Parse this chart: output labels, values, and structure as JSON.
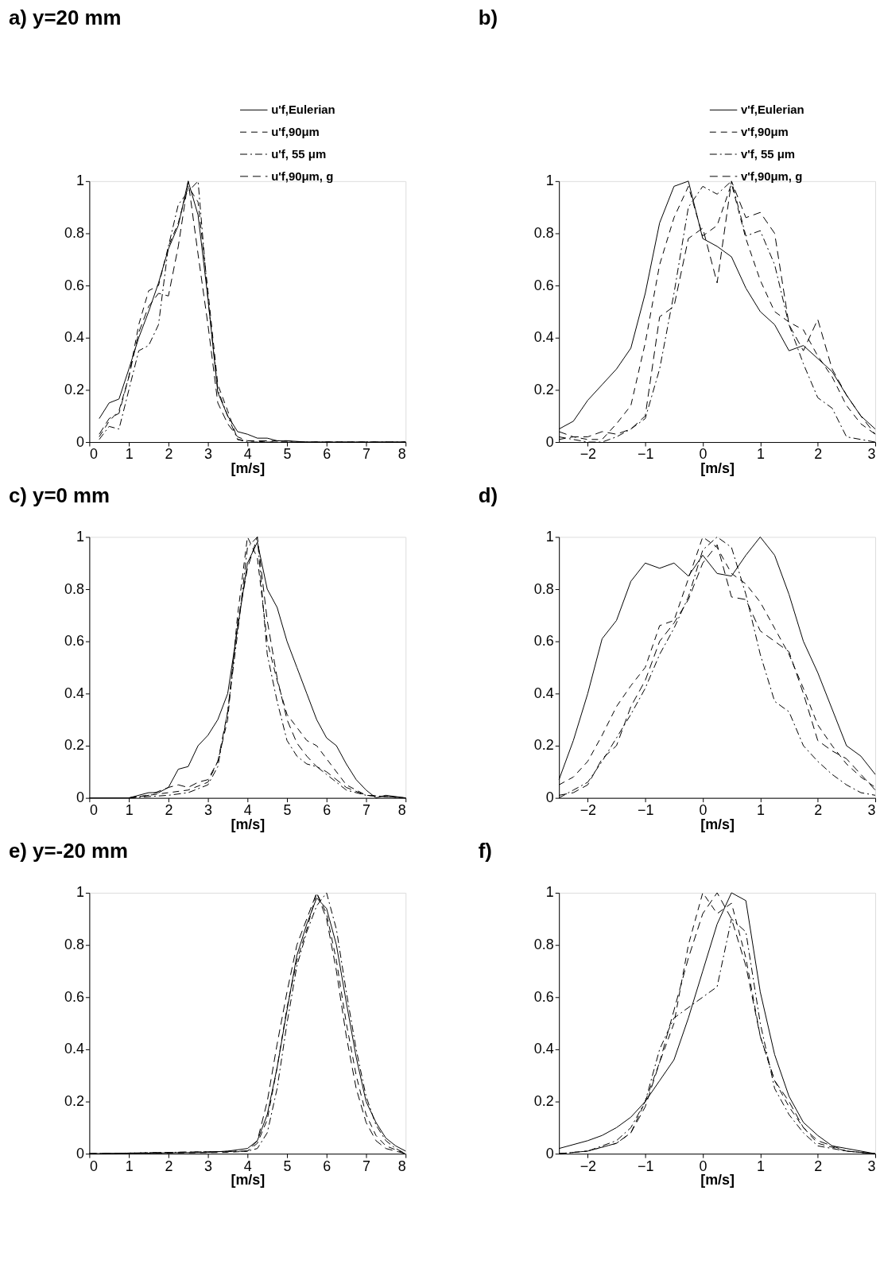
{
  "chart_data": [
    {
      "type": "line",
      "title": "a) y=20 mm",
      "xlabel": "[m/s]",
      "xlim": [
        0,
        8
      ],
      "xticks": [
        0,
        1,
        2,
        3,
        4,
        5,
        6,
        7,
        8
      ],
      "ylim": [
        0,
        1
      ],
      "yticks": [
        0,
        0.2,
        0.4,
        0.6,
        0.8,
        1
      ],
      "grid": false,
      "legend": "top right",
      "series": [
        {
          "name": "u'f,Eulerian",
          "color": "#000000",
          "line_style": "solid",
          "x": [
            0.25,
            0.5,
            0.75,
            1,
            1.25,
            1.5,
            1.75,
            2,
            2.25,
            2.5,
            2.75,
            3,
            3.25,
            3.5,
            3.75,
            4,
            4.25,
            4.5,
            4.75,
            5,
            5.5,
            6,
            7,
            8
          ],
          "values": [
            0.09,
            0.15,
            0.165,
            0.28,
            0.4,
            0.5,
            0.61,
            0.74,
            0.83,
            1.0,
            0.87,
            0.55,
            0.19,
            0.1,
            0.04,
            0.03,
            0.015,
            0.015,
            0.005,
            0.005,
            0,
            0,
            0,
            0
          ]
        },
        {
          "name": "u'f,90μm",
          "color": "#000000",
          "line_style": "dashed",
          "x": [
            0.25,
            0.5,
            0.75,
            1,
            1.25,
            1.5,
            1.75,
            2,
            2.25,
            2.5,
            2.75,
            3,
            3.25,
            3.5,
            3.75,
            4,
            4.5,
            5,
            8
          ],
          "values": [
            0.02,
            0.08,
            0.12,
            0.25,
            0.45,
            0.58,
            0.6,
            0.75,
            0.84,
            0.98,
            0.92,
            0.58,
            0.22,
            0.12,
            0.01,
            0.005,
            0,
            0,
            0
          ]
        },
        {
          "name": "u'f, 55 μm",
          "color": "#000000",
          "line_style": "dashdot",
          "x": [
            0.25,
            0.5,
            0.75,
            1,
            1.25,
            1.5,
            1.75,
            2,
            2.25,
            2.5,
            2.75,
            3,
            3.25,
            3.5,
            3.75,
            4,
            5,
            8
          ],
          "values": [
            0.01,
            0.06,
            0.05,
            0.2,
            0.35,
            0.37,
            0.45,
            0.75,
            0.91,
            0.96,
            1.0,
            0.55,
            0.2,
            0.1,
            0.01,
            0,
            0,
            0
          ]
        },
        {
          "name": "u'f,90μm, g",
          "color": "#000000",
          "line_style": "bold dashed",
          "x": [
            0.25,
            0.5,
            0.75,
            1,
            1.25,
            1.5,
            1.75,
            2,
            2.25,
            2.5,
            2.75,
            3,
            3.25,
            3.5,
            3.75,
            4,
            4.5,
            5,
            5.25,
            8
          ],
          "values": [
            0.03,
            0.09,
            0.11,
            0.25,
            0.42,
            0.52,
            0.57,
            0.56,
            0.75,
            1.0,
            0.72,
            0.45,
            0.15,
            0.07,
            0.02,
            0.005,
            0.005,
            0.005,
            0,
            0
          ]
        }
      ]
    },
    {
      "type": "line",
      "title": "b)",
      "xlabel": "[m/s]",
      "xlim": [
        -2.5,
        3
      ],
      "xticks": [
        -2,
        -1,
        0,
        1,
        2,
        3
      ],
      "ylim": [
        0,
        1
      ],
      "yticks": [
        0,
        0.2,
        0.4,
        0.6,
        0.8,
        1
      ],
      "grid": false,
      "legend": "top right",
      "series": [
        {
          "name": "v'f,Eulerian",
          "color": "#000000",
          "line_style": "solid",
          "x": [
            -2.5,
            -2.25,
            -2,
            -1.75,
            -1.5,
            -1.25,
            -1,
            -0.75,
            -0.5,
            -0.25,
            0,
            0.25,
            0.5,
            0.75,
            1,
            1.25,
            1.5,
            1.75,
            2,
            2.25,
            2.5,
            2.75,
            3
          ],
          "values": [
            0.05,
            0.08,
            0.16,
            0.22,
            0.28,
            0.36,
            0.57,
            0.84,
            0.98,
            1.0,
            0.78,
            0.75,
            0.71,
            0.59,
            0.5,
            0.45,
            0.35,
            0.37,
            0.32,
            0.27,
            0.18,
            0.1,
            0.05
          ]
        },
        {
          "name": "v'f,90μm",
          "color": "#000000",
          "line_style": "dashed",
          "x": [
            -2.5,
            -2.25,
            -2,
            -1.75,
            -1.5,
            -1.25,
            -1,
            -0.75,
            -0.5,
            -0.25,
            0,
            0.25,
            0.5,
            0.75,
            1,
            1.25,
            1.5,
            1.75,
            2,
            2.25,
            2.5,
            2.75,
            3
          ],
          "values": [
            0.01,
            0.02,
            0.01,
            0.01,
            0.07,
            0.14,
            0.38,
            0.68,
            0.86,
            0.98,
            0.79,
            0.83,
            0.99,
            0.78,
            0.62,
            0.5,
            0.46,
            0.43,
            0.33,
            0.25,
            0.14,
            0.07,
            0.03
          ]
        },
        {
          "name": "v'f, 55 μm",
          "color": "#000000",
          "line_style": "dashdot",
          "x": [
            -2.5,
            -2.25,
            -2,
            -1.75,
            -1.5,
            -1.25,
            -1,
            -0.75,
            -0.5,
            -0.25,
            0,
            0.25,
            0.5,
            0.75,
            1,
            1.25,
            1.5,
            1.75,
            2,
            2.25,
            2.5,
            2.75,
            3
          ],
          "values": [
            0.02,
            0.01,
            0,
            0,
            0.02,
            0.05,
            0.09,
            0.28,
            0.57,
            0.9,
            0.98,
            0.95,
            1.0,
            0.79,
            0.81,
            0.68,
            0.45,
            0.3,
            0.17,
            0.13,
            0.02,
            0.01,
            0
          ]
        },
        {
          "name": "v'f,90μm, g",
          "color": "#000000",
          "line_style": "bold dashed",
          "x": [
            -2.5,
            -2.25,
            -2,
            -1.75,
            -1.5,
            -1.25,
            -1,
            -0.75,
            -0.5,
            -0.25,
            0,
            0.25,
            0.5,
            0.75,
            1,
            1.25,
            1.5,
            1.75,
            2,
            2.25,
            2.5,
            2.75,
            3
          ],
          "values": [
            0.04,
            0.02,
            0.02,
            0.04,
            0.03,
            0.05,
            0.1,
            0.48,
            0.52,
            0.78,
            0.82,
            0.61,
            1.0,
            0.86,
            0.88,
            0.8,
            0.45,
            0.35,
            0.47,
            0.28,
            0.18,
            0.1,
            0.03
          ]
        }
      ]
    },
    {
      "type": "line",
      "title": "c)   y=0 mm",
      "xlabel": "[m/s]",
      "xlim": [
        0,
        8
      ],
      "xticks": [
        0,
        1,
        2,
        3,
        4,
        5,
        6,
        7,
        8
      ],
      "ylim": [
        0,
        1
      ],
      "yticks": [
        0,
        0.2,
        0.4,
        0.6,
        0.8,
        1
      ],
      "grid": false,
      "series": [
        {
          "color": "#000000",
          "line_style": "solid",
          "x": [
            0,
            1,
            1.5,
            1.75,
            2,
            2.25,
            2.5,
            2.75,
            3,
            3.25,
            3.5,
            3.75,
            4,
            4.25,
            4.5,
            4.75,
            5,
            5.25,
            5.5,
            5.75,
            6,
            6.25,
            6.5,
            6.75,
            7,
            7.25,
            7.5,
            8
          ],
          "values": [
            0,
            0,
            0.02,
            0.02,
            0.04,
            0.11,
            0.12,
            0.2,
            0.24,
            0.3,
            0.4,
            0.65,
            0.9,
            0.98,
            0.8,
            0.73,
            0.6,
            0.5,
            0.4,
            0.3,
            0.23,
            0.2,
            0.13,
            0.07,
            0.03,
            0,
            0.01,
            0
          ]
        },
        {
          "color": "#000000",
          "line_style": "dashed",
          "x": [
            1,
            1.5,
            2,
            2.5,
            3,
            3.25,
            3.5,
            3.75,
            4,
            4.25,
            4.5,
            4.75,
            5,
            5.25,
            5.5,
            5.75,
            6,
            6.5,
            7,
            8
          ],
          "values": [
            0,
            0.01,
            0.02,
            0.03,
            0.06,
            0.14,
            0.3,
            0.7,
            1.0,
            0.92,
            0.6,
            0.45,
            0.32,
            0.27,
            0.22,
            0.2,
            0.15,
            0.05,
            0.01,
            0
          ]
        },
        {
          "color": "#000000",
          "line_style": "dashdot",
          "x": [
            1,
            2,
            2.5,
            3,
            3.25,
            3.5,
            3.75,
            4,
            4.25,
            4.5,
            4.75,
            5,
            5.25,
            5.5,
            5.75,
            6,
            6.5,
            7,
            8
          ],
          "values": [
            0,
            0.01,
            0.02,
            0.05,
            0.12,
            0.33,
            0.63,
            0.96,
            1.0,
            0.55,
            0.37,
            0.22,
            0.16,
            0.13,
            0.12,
            0.09,
            0.03,
            0.01,
            0
          ]
        },
        {
          "color": "#000000",
          "line_style": "bold dashed",
          "x": [
            1,
            1.5,
            2,
            2.25,
            2.5,
            2.75,
            3,
            3.25,
            3.5,
            3.75,
            4,
            4.25,
            4.5,
            4.75,
            5,
            5.25,
            5.5,
            5.75,
            6,
            6.5,
            7,
            8
          ],
          "values": [
            0,
            0.01,
            0.04,
            0.05,
            0.04,
            0.06,
            0.07,
            0.14,
            0.33,
            0.67,
            0.88,
            1.0,
            0.68,
            0.46,
            0.3,
            0.21,
            0.16,
            0.12,
            0.1,
            0.04,
            0.01,
            0
          ]
        }
      ]
    },
    {
      "type": "line",
      "title": "d)",
      "xlabel": "[m/s]",
      "xlim": [
        -2.5,
        3
      ],
      "xticks": [
        -2,
        -1,
        0,
        1,
        2,
        3
      ],
      "ylim": [
        0,
        1
      ],
      "yticks": [
        0,
        0.2,
        0.4,
        0.6,
        0.8,
        1
      ],
      "grid": false,
      "series": [
        {
          "color": "#000000",
          "line_style": "solid",
          "x": [
            -2.5,
            -2.25,
            -2,
            -1.75,
            -1.5,
            -1.25,
            -1,
            -0.75,
            -0.5,
            -0.25,
            0,
            0.25,
            0.5,
            0.75,
            1,
            1.25,
            1.5,
            1.75,
            2,
            2.25,
            2.5,
            2.75,
            3
          ],
          "values": [
            0.07,
            0.22,
            0.4,
            0.61,
            0.68,
            0.83,
            0.9,
            0.88,
            0.9,
            0.85,
            0.93,
            0.86,
            0.85,
            0.93,
            1.0,
            0.93,
            0.78,
            0.6,
            0.48,
            0.34,
            0.2,
            0.16,
            0.09
          ]
        },
        {
          "color": "#000000",
          "line_style": "dashed",
          "x": [
            -2.5,
            -2.25,
            -2,
            -1.75,
            -1.5,
            -1.25,
            -1,
            -0.75,
            -0.5,
            -0.25,
            0,
            0.25,
            0.5,
            0.75,
            1,
            1.25,
            1.5,
            1.75,
            2,
            2.25,
            2.5,
            2.75,
            3
          ],
          "values": [
            0.05,
            0.08,
            0.14,
            0.24,
            0.35,
            0.43,
            0.5,
            0.66,
            0.68,
            0.84,
            1.0,
            0.96,
            0.86,
            0.82,
            0.75,
            0.65,
            0.55,
            0.42,
            0.28,
            0.2,
            0.13,
            0.08,
            0.04
          ]
        },
        {
          "color": "#000000",
          "line_style": "dashdot",
          "x": [
            -2.5,
            -2.25,
            -2,
            -1.75,
            -1.5,
            -1.25,
            -1,
            -0.75,
            -0.5,
            -0.25,
            0,
            0.25,
            0.5,
            0.75,
            1,
            1.25,
            1.5,
            1.75,
            2,
            2.25,
            2.5,
            2.75,
            3
          ],
          "values": [
            0,
            0.03,
            0.06,
            0.14,
            0.23,
            0.32,
            0.42,
            0.55,
            0.65,
            0.77,
            0.95,
            1.0,
            0.96,
            0.78,
            0.55,
            0.37,
            0.33,
            0.2,
            0.14,
            0.09,
            0.05,
            0.02,
            0.01
          ]
        },
        {
          "color": "#000000",
          "line_style": "bold dashed",
          "x": [
            -2.5,
            -2.25,
            -2,
            -1.75,
            -1.5,
            -1.25,
            -1,
            -0.75,
            -0.5,
            -0.25,
            0,
            0.25,
            0.5,
            0.75,
            1,
            1.25,
            1.5,
            1.75,
            2,
            2.25,
            2.5,
            2.75,
            3
          ],
          "values": [
            0.01,
            0.02,
            0.05,
            0.15,
            0.2,
            0.35,
            0.45,
            0.6,
            0.67,
            0.76,
            0.9,
            0.97,
            0.77,
            0.76,
            0.64,
            0.6,
            0.56,
            0.4,
            0.22,
            0.18,
            0.15,
            0.09,
            0.03
          ]
        }
      ]
    },
    {
      "type": "line",
      "title": "e) y=-20 mm",
      "xlabel": "[m/s]",
      "xlim": [
        0,
        8
      ],
      "xticks": [
        0,
        1,
        2,
        3,
        4,
        5,
        6,
        7,
        8
      ],
      "ylim": [
        0,
        1
      ],
      "yticks": [
        0,
        0.2,
        0.4,
        0.6,
        0.8,
        1
      ],
      "grid": false,
      "series": [
        {
          "color": "#000000",
          "line_style": "solid",
          "x": [
            0,
            3,
            3.5,
            4,
            4.25,
            4.5,
            4.75,
            5,
            5.25,
            5.5,
            5.75,
            6,
            6.25,
            6.5,
            6.75,
            7,
            7.25,
            7.5,
            7.75,
            8
          ],
          "values": [
            0,
            0.005,
            0.01,
            0.02,
            0.05,
            0.15,
            0.33,
            0.55,
            0.76,
            0.88,
            0.98,
            0.94,
            0.8,
            0.58,
            0.37,
            0.2,
            0.12,
            0.06,
            0.03,
            0.01
          ]
        },
        {
          "color": "#000000",
          "line_style": "dashed",
          "x": [
            0,
            3.5,
            4,
            4.25,
            4.5,
            4.75,
            5,
            5.25,
            5.5,
            5.75,
            6,
            6.25,
            6.5,
            6.75,
            7,
            7.25,
            7.5,
            8
          ],
          "values": [
            0,
            0.005,
            0.01,
            0.04,
            0.13,
            0.33,
            0.56,
            0.74,
            0.86,
            1.0,
            0.92,
            0.74,
            0.5,
            0.3,
            0.15,
            0.07,
            0.03,
            0
          ]
        },
        {
          "color": "#000000",
          "line_style": "dashdot",
          "x": [
            0,
            4,
            4.25,
            4.5,
            4.75,
            5,
            5.25,
            5.5,
            5.75,
            6,
            6.25,
            6.5,
            6.75,
            7,
            7.25,
            7.5,
            7.75,
            8
          ],
          "values": [
            0,
            0.01,
            0.02,
            0.08,
            0.25,
            0.5,
            0.72,
            0.85,
            0.95,
            1.0,
            0.86,
            0.62,
            0.4,
            0.22,
            0.11,
            0.05,
            0.02,
            0
          ]
        },
        {
          "color": "#000000",
          "line_style": "bold dashed",
          "x": [
            0,
            4,
            4.25,
            4.5,
            4.75,
            5,
            5.25,
            5.5,
            5.75,
            6,
            6.25,
            6.5,
            6.75,
            7,
            7.25,
            7.5,
            8
          ],
          "values": [
            0,
            0.01,
            0.05,
            0.2,
            0.42,
            0.62,
            0.8,
            0.9,
            1.0,
            0.9,
            0.7,
            0.45,
            0.25,
            0.12,
            0.05,
            0.02,
            0
          ]
        }
      ]
    },
    {
      "type": "line",
      "title": "f)",
      "xlabel": "[m/s]",
      "xlim": [
        -2.5,
        3
      ],
      "xticks": [
        -2,
        -1,
        0,
        1,
        2,
        3
      ],
      "ylim": [
        0,
        1
      ],
      "yticks": [
        0,
        0.2,
        0.4,
        0.6,
        0.8,
        1
      ],
      "grid": false,
      "series": [
        {
          "color": "#000000",
          "line_style": "solid",
          "x": [
            -2.5,
            -2,
            -1.75,
            -1.5,
            -1.25,
            -1,
            -0.75,
            -0.5,
            -0.25,
            0,
            0.25,
            0.5,
            0.75,
            1,
            1.25,
            1.5,
            1.75,
            2,
            2.25,
            2.5,
            2.75,
            3
          ],
          "values": [
            0.02,
            0.05,
            0.07,
            0.1,
            0.14,
            0.2,
            0.28,
            0.36,
            0.52,
            0.7,
            0.88,
            1.0,
            0.97,
            0.62,
            0.38,
            0.22,
            0.12,
            0.07,
            0.03,
            0.02,
            0.01,
            0
          ]
        },
        {
          "color": "#000000",
          "line_style": "dashed",
          "x": [
            -2.5,
            -2,
            -1.5,
            -1.25,
            -1,
            -0.75,
            -0.5,
            -0.25,
            0,
            0.25,
            0.5,
            0.75,
            1,
            1.25,
            1.5,
            1.75,
            2,
            2.5,
            3
          ],
          "values": [
            0,
            0.01,
            0.04,
            0.08,
            0.2,
            0.35,
            0.5,
            0.8,
            1.0,
            0.92,
            0.96,
            0.75,
            0.45,
            0.28,
            0.18,
            0.1,
            0.04,
            0.01,
            0
          ]
        },
        {
          "color": "#000000",
          "line_style": "dashdot",
          "x": [
            -2.5,
            -2,
            -1.5,
            -1.25,
            -1,
            -0.75,
            -0.5,
            -0.25,
            0,
            0.25,
            0.5,
            0.75,
            1,
            1.25,
            1.5,
            1.75,
            2,
            2.5,
            3
          ],
          "values": [
            0,
            0.01,
            0.05,
            0.1,
            0.2,
            0.4,
            0.52,
            0.56,
            0.6,
            0.64,
            0.9,
            0.85,
            0.5,
            0.25,
            0.15,
            0.08,
            0.03,
            0.01,
            0
          ]
        },
        {
          "color": "#000000",
          "line_style": "bold dashed",
          "x": [
            -2.5,
            -2,
            -1.5,
            -1.25,
            -1,
            -0.75,
            -0.5,
            -0.25,
            0,
            0.25,
            0.5,
            0.75,
            1,
            1.25,
            1.5,
            1.75,
            2,
            2.5,
            3
          ],
          "values": [
            0,
            0.01,
            0.04,
            0.08,
            0.18,
            0.35,
            0.55,
            0.75,
            0.92,
            1.0,
            0.9,
            0.72,
            0.45,
            0.28,
            0.2,
            0.1,
            0.05,
            0.01,
            0
          ]
        }
      ]
    }
  ]
}
